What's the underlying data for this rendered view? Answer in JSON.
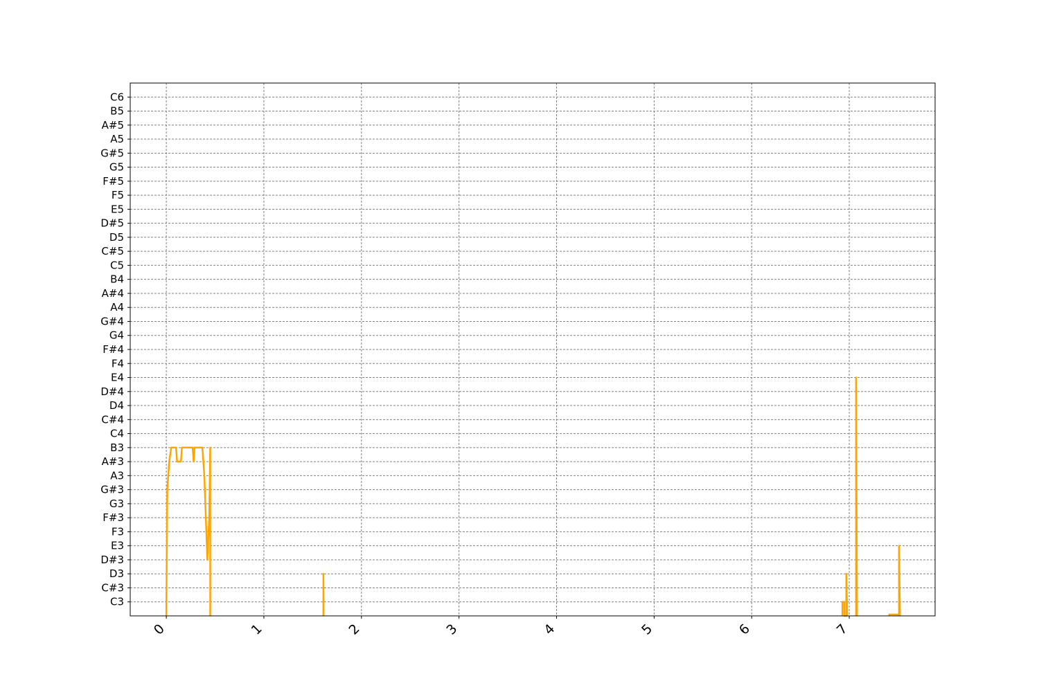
{
  "chart_data": {
    "type": "line",
    "title": "",
    "xlabel": "",
    "ylabel": "",
    "xlim": [
      -0.37,
      7.88
    ],
    "ylim": [
      -1,
      37
    ],
    "grid": true,
    "legend": "none",
    "y_tick_labels": [
      "C3",
      "C#3",
      "D3",
      "D#3",
      "E3",
      "F3",
      "F#3",
      "G3",
      "G#3",
      "A3",
      "A#3",
      "B3",
      "C4",
      "C#4",
      "D4",
      "D#4",
      "E4",
      "F4",
      "F#4",
      "G4",
      "G#4",
      "A4",
      "A#4",
      "B4",
      "C5",
      "C#5",
      "D5",
      "D#5",
      "E5",
      "F5",
      "F#5",
      "G5",
      "G#5",
      "A5",
      "A#5",
      "B5",
      "C6"
    ],
    "x_tick_labels": [
      "0",
      "1",
      "2",
      "3",
      "4",
      "5",
      "6",
      "7"
    ],
    "x_tick_values": [
      0,
      1,
      2,
      3,
      4,
      5,
      6,
      7
    ],
    "series": [
      {
        "color": "#FFA500",
        "segments": [
          [
            [
              0.0,
              -1
            ],
            [
              0.01,
              8
            ],
            [
              0.03,
              10
            ],
            [
              0.05,
              11
            ],
            [
              0.1,
              11
            ],
            [
              0.11,
              10
            ],
            [
              0.15,
              10
            ],
            [
              0.16,
              11
            ],
            [
              0.27,
              11
            ],
            [
              0.28,
              10
            ],
            [
              0.29,
              11
            ],
            [
              0.37,
              11
            ],
            [
              0.39,
              9
            ],
            [
              0.41,
              5
            ],
            [
              0.42,
              3
            ],
            [
              0.44,
              6
            ],
            [
              0.45,
              11
            ],
            [
              0.45,
              -1
            ]
          ],
          [
            [
              1.61,
              -1
            ],
            [
              1.61,
              2
            ],
            [
              1.612,
              -1
            ]
          ],
          [
            [
              6.93,
              -1
            ],
            [
              6.93,
              0
            ],
            [
              6.95,
              0
            ],
            [
              6.95,
              -1
            ],
            [
              6.97,
              -1
            ],
            [
              6.97,
              2
            ],
            [
              6.98,
              -1
            ]
          ],
          [
            [
              7.07,
              -1
            ],
            [
              7.07,
              16
            ],
            [
              7.08,
              -1
            ]
          ],
          [
            [
              7.41,
              -1
            ],
            [
              7.41,
              -0.9
            ],
            [
              7.5,
              -0.9
            ],
            [
              7.5,
              -1
            ]
          ],
          [
            [
              7.51,
              -1
            ],
            [
              7.51,
              4
            ],
            [
              7.52,
              -1
            ]
          ]
        ]
      }
    ]
  }
}
